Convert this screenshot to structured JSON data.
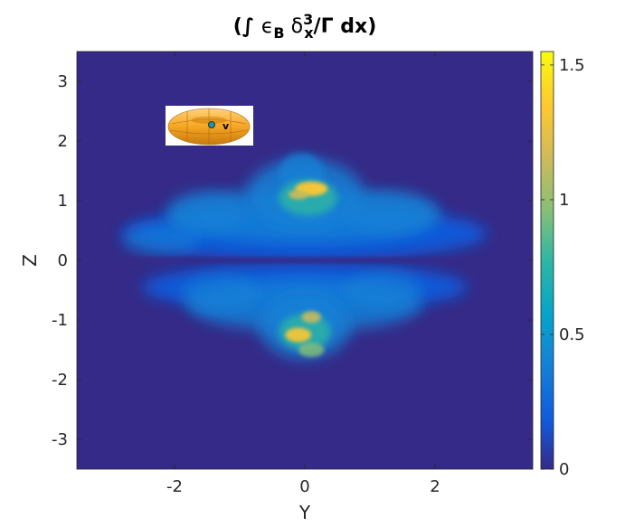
{
  "chart_data": {
    "type": "heatmap",
    "title": {
      "open": "(∫ ",
      "epsilon": "ϵ",
      "eps_sub": "B",
      "delta": " δ",
      "delta_sup": "3",
      "delta_sub": "x",
      "rest": "/Γ dx)"
    },
    "xlabel": "Y",
    "ylabel": "Z",
    "xlim": [
      -3.5,
      3.5
    ],
    "ylim": [
      -3.5,
      3.5
    ],
    "xticks": [
      -2,
      0,
      2
    ],
    "yticks": [
      -3,
      -2,
      -1,
      0,
      1,
      2,
      3
    ],
    "colorbar": {
      "colormap": "parula",
      "limits": [
        0,
        1.55
      ],
      "ticks": [
        0,
        0.5,
        1,
        1.5
      ]
    },
    "inset": {
      "description": "torus-observer-icon",
      "marker_label": "v",
      "color": "#f5a623"
    },
    "features": [
      {
        "name": "upper-lobe",
        "y_center": 0.3,
        "z_range": [
          0.05,
          1.8
        ],
        "y_range": [
          -3.0,
          2.7
        ],
        "peak_value": 1.5,
        "peak_y": 0.1,
        "peak_z": 1.2
      },
      {
        "name": "lower-lobe",
        "y_center": 0.0,
        "z_range": [
          -1.7,
          -0.05
        ],
        "y_range": [
          -2.6,
          2.6
        ],
        "peak_value": 1.3,
        "peak_y": -0.1,
        "peak_z": -1.2
      },
      {
        "name": "midplane-gap",
        "z": 0.0
      }
    ]
  }
}
